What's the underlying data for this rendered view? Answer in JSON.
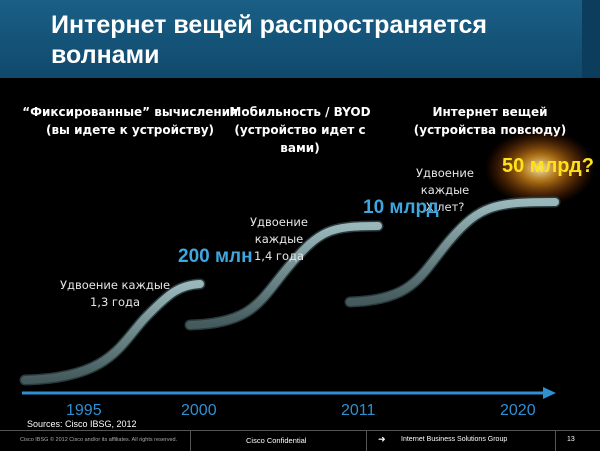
{
  "slide": {
    "title": "Интернет вещей распространяется волнами",
    "columns": [
      "“Фиксированные” вычисления\n(вы идете к устройству)",
      "Мобильность / BYOD\n(устройство идет с вами)",
      "Интернет вещей\n(устройства повсюду)"
    ],
    "notes": [
      "Удвоение каждые\n1,3 года",
      "Удвоение каждые\n1,4 года",
      "Удвоение каждые\nX лет?"
    ],
    "figures": [
      "200 млн",
      "10 млрд",
      "50 млрд?"
    ],
    "years": [
      "1995",
      "2000",
      "2011",
      "2020"
    ],
    "sources": "Sources: Cisco IBSG, 2012",
    "colors": {
      "header": "#1a5f86",
      "accent": "#3fa6de",
      "highlight": "#ffe21a",
      "wave": "#5f7f82"
    }
  },
  "footer": {
    "copyright": "Cisco IBSG © 2012 Cisco and/or its affiliates. All rights reserved.",
    "confidential": "Cisco Confidential",
    "arrow_icon": "right-arrow-icon",
    "group": "Internet Business Solutions Group",
    "page": "13"
  }
}
